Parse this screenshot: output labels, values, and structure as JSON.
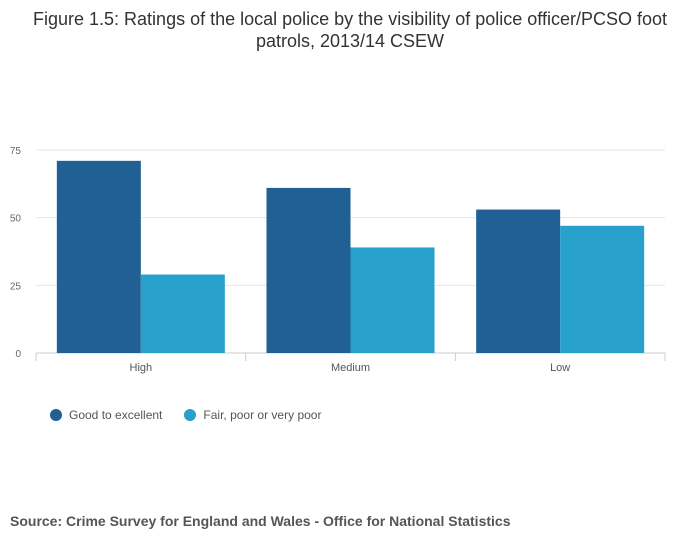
{
  "source_text": "Source: Crime Survey for England and Wales - Office for National Statistics",
  "chart_data": {
    "type": "bar",
    "title": "Figure 1.5: Ratings of the local police by the visibility of police officer/PCSO foot patrols, 2013/14 CSEW",
    "xlabel": "",
    "ylabel": "",
    "categories": [
      "High",
      "Medium",
      "Low"
    ],
    "series": [
      {
        "name": "Good to excellent",
        "values": [
          71,
          61,
          53
        ],
        "color": "#206095"
      },
      {
        "name": "Fair, poor or very poor",
        "values": [
          29,
          39,
          47
        ],
        "color": "#27a0cc"
      }
    ],
    "ylim": [
      0,
      75
    ],
    "yticks": [
      0,
      25,
      50,
      75
    ],
    "grid": true,
    "legend_position": "bottom-left"
  }
}
